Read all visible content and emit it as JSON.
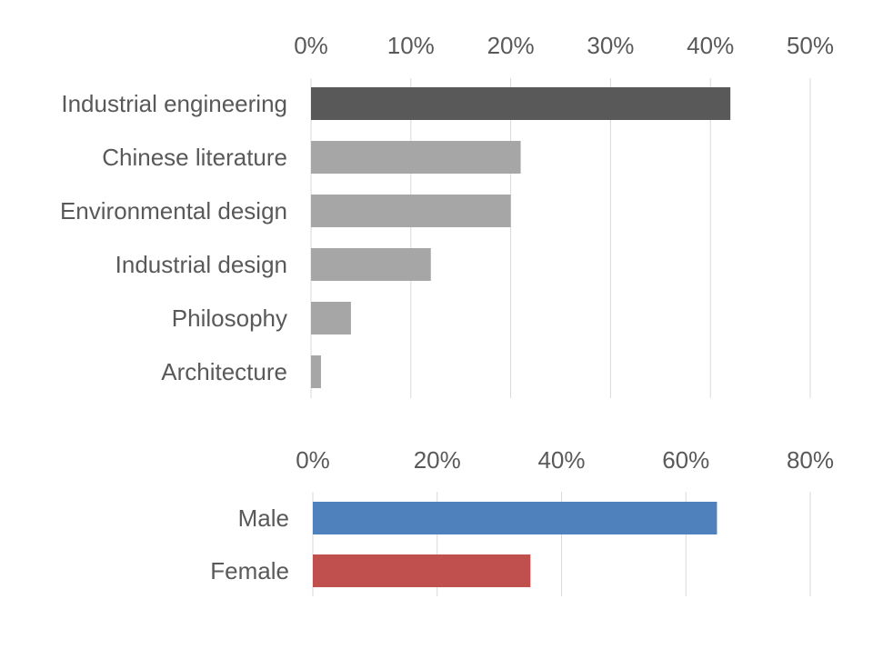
{
  "chart_data": [
    {
      "type": "bar",
      "orientation": "horizontal",
      "categories": [
        "Industrial engineering",
        "Chinese literature",
        "Environmental design",
        "Industrial design",
        "Philosophy",
        "Architecture"
      ],
      "values": [
        42,
        21,
        20,
        12,
        4,
        1
      ],
      "colors": [
        "#595959",
        "#a6a6a6",
        "#a6a6a6",
        "#a6a6a6",
        "#a6a6a6",
        "#a6a6a6"
      ],
      "xlim": [
        0,
        50
      ],
      "ticks": [
        0,
        10,
        20,
        30,
        40,
        50
      ],
      "tick_labels": [
        "0%",
        "10%",
        "20%",
        "30%",
        "40%",
        "50%"
      ],
      "axis_position": "top",
      "grid": true,
      "legend": false
    },
    {
      "type": "bar",
      "orientation": "horizontal",
      "categories": [
        "Male",
        "Female"
      ],
      "values": [
        65,
        35
      ],
      "colors": [
        "#4f81bd",
        "#c0504d"
      ],
      "xlim": [
        0,
        80
      ],
      "ticks": [
        0,
        20,
        40,
        60,
        80
      ],
      "tick_labels": [
        "0%",
        "20%",
        "40%",
        "60%",
        "80%"
      ],
      "axis_position": "top",
      "grid": true,
      "legend": false
    }
  ],
  "colors": {
    "tick_text": "#595959",
    "gridline": "#d9d9d9"
  }
}
